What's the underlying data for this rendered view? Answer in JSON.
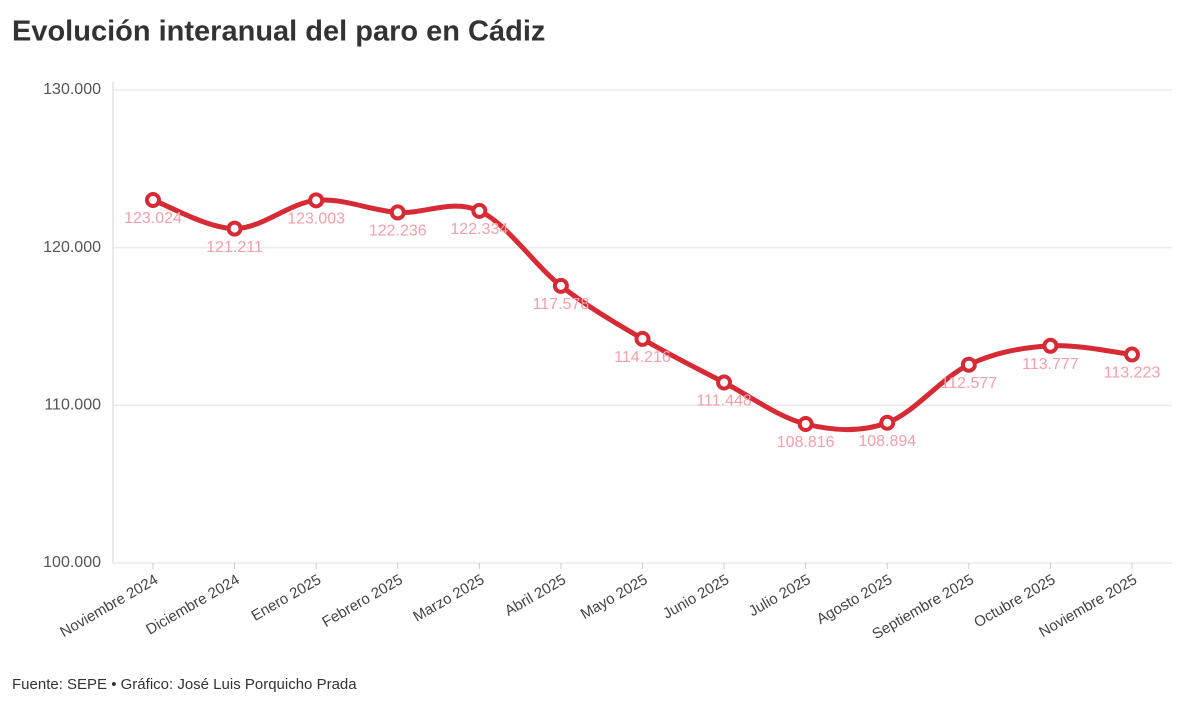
{
  "chart_data": {
    "type": "line",
    "title": "Evolución interanual del paro en Cádiz",
    "source": "Fuente: SEPE • Gráfico: José Luis Porquicho Prada",
    "categories": [
      "Noviembre 2024",
      "Diciembre 2024",
      "Enero 2025",
      "Febrero 2025",
      "Marzo 2025",
      "Abril 2025",
      "Mayo 2025",
      "Junio 2025",
      "Julio 2025",
      "Agosto 2025",
      "Septiembre 2025",
      "Octubre 2025",
      "Noviembre 2025"
    ],
    "values": [
      123024,
      121211,
      123003,
      122236,
      122334,
      117578,
      114216,
      111448,
      108816,
      108894,
      112577,
      113777,
      113223
    ],
    "value_labels": [
      "123.024",
      "121.211",
      "123.003",
      "122.236",
      "122.334",
      "117.578",
      "114.216",
      "111.448",
      "108.816",
      "108.894",
      "112.577",
      "113.777",
      "113.223"
    ],
    "color": "#d62a35",
    "ylim": [
      100000,
      130000
    ],
    "yticks": [
      {
        "value": 100000,
        "label": "100.000"
      },
      {
        "value": 110000,
        "label": "110.000"
      },
      {
        "value": 120000,
        "label": "120.000"
      },
      {
        "value": 130000,
        "label": "130.000"
      }
    ],
    "grid": true
  }
}
